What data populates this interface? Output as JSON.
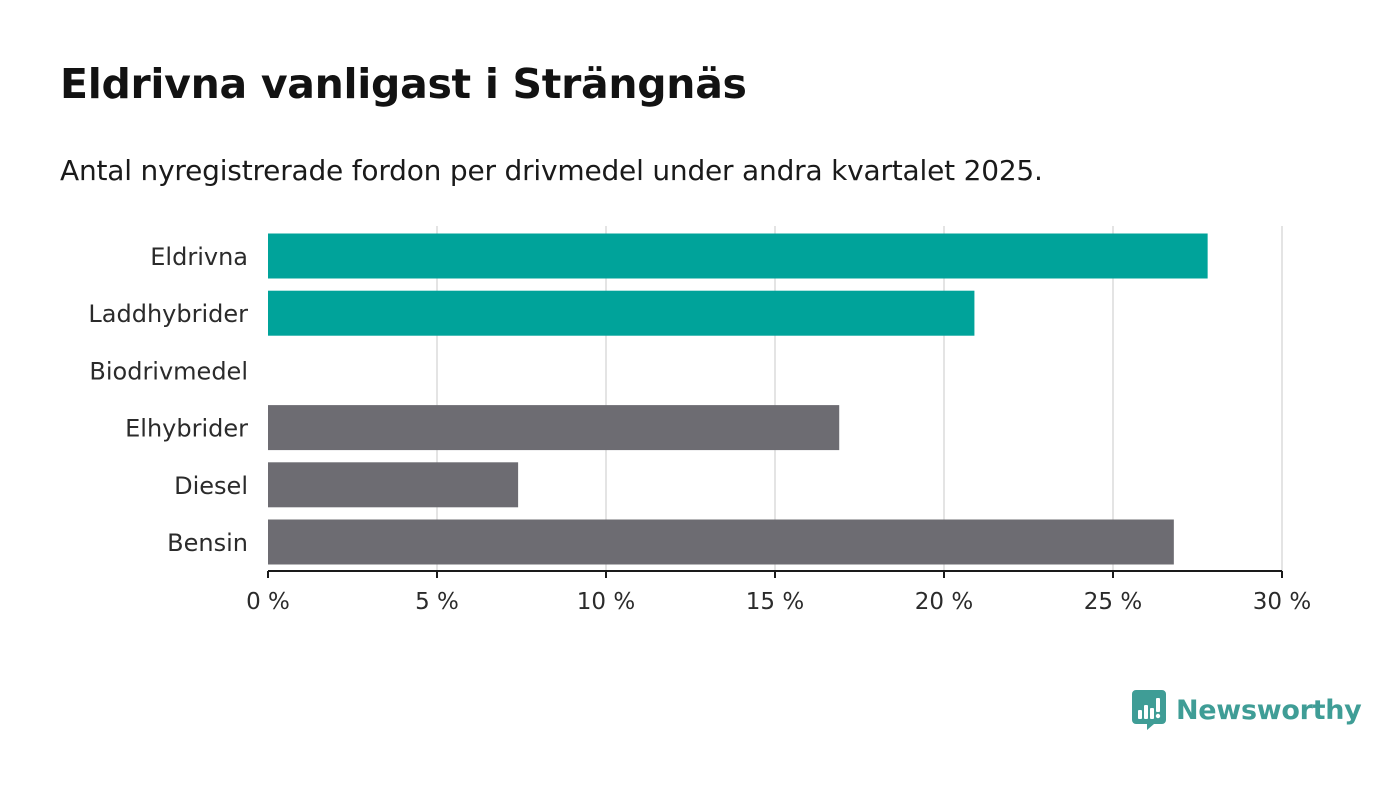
{
  "title": "Eldrivna vanligast i Strängnäs",
  "subtitle": "Antal nyregistrerade fordon per drivmedel under andra kvartalet 2025.",
  "brand": {
    "name": "Newsworthy",
    "icon": "newsworthy-logo-icon",
    "color": "#3f9d96"
  },
  "colors": {
    "highlight": "#00a39a",
    "neutral": "#6d6c72",
    "grid": "#dcdcdc",
    "axis": "#1a1a1a"
  },
  "chart_data": {
    "type": "bar",
    "orientation": "horizontal",
    "categories": [
      "Eldrivna",
      "Laddhybrider",
      "Biodrivmedel",
      "Elhybrider",
      "Diesel",
      "Bensin"
    ],
    "values": [
      27.8,
      20.9,
      0,
      16.9,
      7.4,
      26.8
    ],
    "bar_colors": [
      "highlight",
      "highlight",
      "highlight",
      "neutral",
      "neutral",
      "neutral"
    ],
    "xlim": [
      0,
      30
    ],
    "xticks": [
      0,
      5,
      10,
      15,
      20,
      25,
      30
    ],
    "tick_labels": [
      "0 %",
      "5 %",
      "10 %",
      "15 %",
      "20 %",
      "25 %",
      "30 %"
    ],
    "grid": "vertical",
    "legend": "none"
  }
}
